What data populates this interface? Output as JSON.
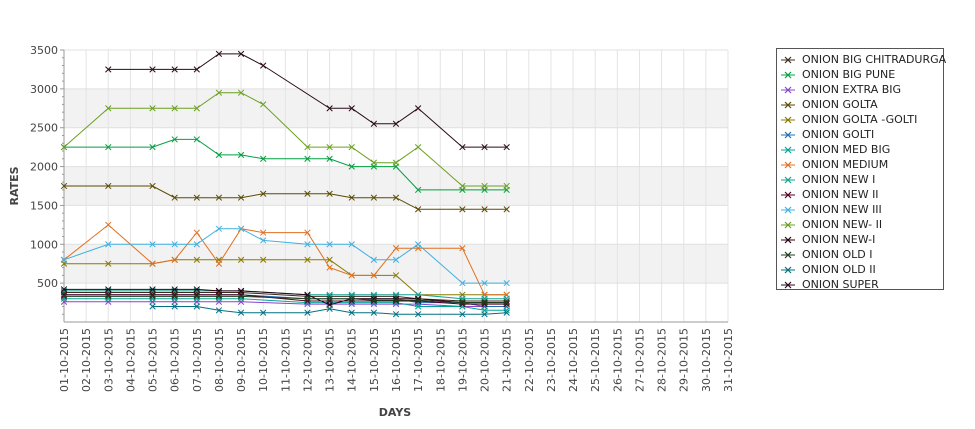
{
  "chart_data": {
    "type": "line",
    "xlabel": "DAYS",
    "ylabel": "RATES",
    "ylim": [
      0,
      3500
    ],
    "y_ticks": [
      500,
      1000,
      1500,
      2000,
      2500,
      3000,
      3500
    ],
    "grid": "on",
    "legend_position": "right",
    "x": [
      "01-10-2015",
      "02-10-2015",
      "03-10-2015",
      "04-10-2015",
      "05-10-2015",
      "06-10-2015",
      "07-10-2015",
      "08-10-2015",
      "09-10-2015",
      "10-10-2015",
      "11-10-2015",
      "12-10-2015",
      "13-10-2015",
      "14-10-2015",
      "15-10-2015",
      "16-10-2015",
      "17-10-2015",
      "18-10-2015",
      "19-10-2015",
      "20-10-2015",
      "21-10-2015",
      "22-10-2015",
      "23-10-2015",
      "24-10-2015",
      "25-10-2015",
      "26-10-2015",
      "27-10-2015",
      "28-10-2015",
      "29-10-2015",
      "30-10-2015",
      "31-10-2015"
    ],
    "series": [
      {
        "name": "ONION BIG CHITRADURGA",
        "color": "#3d2b1f",
        "values": [
          380,
          null,
          380,
          null,
          380,
          380,
          380,
          380,
          380,
          null,
          null,
          330,
          330,
          330,
          330,
          330,
          300,
          null,
          270,
          270,
          270,
          null,
          null,
          null,
          null,
          null,
          null,
          null,
          null,
          null,
          null
        ]
      },
      {
        "name": "ONION BIG PUNE",
        "color": "#00a040",
        "values": [
          2250,
          null,
          2250,
          null,
          2250,
          2350,
          2350,
          2150,
          2150,
          2100,
          null,
          2100,
          2100,
          2000,
          2000,
          2000,
          1700,
          null,
          1700,
          1700,
          1700,
          null,
          null,
          null,
          null,
          null,
          null,
          null,
          null,
          null,
          null
        ]
      },
      {
        "name": "ONION EXTRA BIG",
        "color": "#8844cc",
        "values": [
          260,
          null,
          260,
          null,
          260,
          260,
          260,
          260,
          260,
          null,
          null,
          230,
          230,
          230,
          230,
          230,
          230,
          null,
          200,
          200,
          200,
          null,
          null,
          null,
          null,
          null,
          null,
          null,
          null,
          null,
          null
        ]
      },
      {
        "name": "ONION GOLTA",
        "color": "#5a4a00",
        "values": [
          1750,
          null,
          1750,
          null,
          1750,
          1600,
          1600,
          1600,
          1600,
          1650,
          null,
          1650,
          1650,
          1600,
          1600,
          1600,
          1450,
          null,
          1450,
          1450,
          1450,
          null,
          null,
          null,
          null,
          null,
          null,
          null,
          null,
          null,
          null
        ]
      },
      {
        "name": "ONION GOLTA -GOLTI",
        "color": "#8a7a00",
        "values": [
          750,
          null,
          750,
          null,
          750,
          800,
          800,
          800,
          800,
          800,
          null,
          800,
          800,
          600,
          600,
          600,
          350,
          null,
          350,
          350,
          350,
          null,
          null,
          null,
          null,
          null,
          null,
          null,
          null,
          null,
          null
        ]
      },
      {
        "name": "ONION GOLTI",
        "color": "#1f6fb4",
        "values": [
          350,
          null,
          350,
          null,
          350,
          350,
          350,
          350,
          350,
          null,
          null,
          300,
          300,
          300,
          300,
          300,
          250,
          null,
          250,
          200,
          200,
          null,
          null,
          null,
          null,
          null,
          null,
          null,
          null,
          null,
          null
        ]
      },
      {
        "name": "ONION MED BIG",
        "color": "#00a59a",
        "values": [
          300,
          null,
          300,
          null,
          300,
          300,
          300,
          300,
          300,
          null,
          null,
          250,
          250,
          250,
          250,
          250,
          200,
          null,
          200,
          150,
          150,
          null,
          null,
          null,
          null,
          null,
          null,
          null,
          null,
          null,
          null
        ]
      },
      {
        "name": "ONION MEDIUM",
        "color": "#e07020",
        "values": [
          800,
          null,
          1250,
          null,
          750,
          800,
          1150,
          750,
          1200,
          1150,
          null,
          1150,
          700,
          600,
          600,
          950,
          950,
          null,
          950,
          350,
          350,
          null,
          null,
          null,
          null,
          null,
          null,
          null,
          null,
          null,
          null
        ]
      },
      {
        "name": "ONION NEW I",
        "color": "#10a090",
        "values": [
          400,
          null,
          400,
          null,
          400,
          400,
          400,
          400,
          400,
          null,
          null,
          350,
          350,
          350,
          350,
          350,
          350,
          null,
          300,
          300,
          300,
          null,
          null,
          null,
          null,
          null,
          null,
          null,
          null,
          null,
          null
        ]
      },
      {
        "name": "ONION NEW II",
        "color": "#550022",
        "values": [
          350,
          null,
          350,
          null,
          350,
          350,
          350,
          350,
          350,
          null,
          null,
          270,
          270,
          270,
          270,
          270,
          270,
          null,
          230,
          230,
          230,
          null,
          null,
          null,
          null,
          null,
          null,
          null,
          null,
          null,
          null
        ]
      },
      {
        "name": "ONION NEW III",
        "color": "#40b0e0",
        "values": [
          800,
          null,
          1000,
          null,
          1000,
          1000,
          1000,
          1200,
          1200,
          1050,
          null,
          1000,
          1000,
          1000,
          800,
          800,
          1000,
          null,
          500,
          500,
          500,
          null,
          null,
          null,
          null,
          null,
          null,
          null,
          null,
          null,
          null
        ]
      },
      {
        "name": "ONION NEW- II",
        "color": "#6aa020",
        "values": [
          2250,
          null,
          2750,
          null,
          2750,
          2750,
          2750,
          2950,
          2950,
          2800,
          null,
          2250,
          2250,
          2250,
          2050,
          2050,
          2250,
          null,
          1750,
          1750,
          1750,
          null,
          null,
          null,
          null,
          null,
          null,
          null,
          null,
          null,
          null
        ]
      },
      {
        "name": "ONION NEW-I",
        "color": "#2a0010",
        "values": [
          420,
          null,
          420,
          null,
          420,
          420,
          420,
          400,
          400,
          null,
          null,
          350,
          220,
          300,
          300,
          300,
          300,
          null,
          250,
          250,
          250,
          null,
          null,
          null,
          null,
          null,
          null,
          null,
          null,
          null,
          null
        ]
      },
      {
        "name": "ONION OLD I",
        "color": "#1f3f1f",
        "values": [
          330,
          null,
          330,
          null,
          330,
          330,
          330,
          330,
          330,
          null,
          null,
          300,
          300,
          300,
          280,
          280,
          280,
          null,
          250,
          250,
          250,
          null,
          null,
          null,
          null,
          null,
          null,
          null,
          null,
          null,
          null
        ]
      },
      {
        "name": "ONION OLD II",
        "color": "#007080",
        "values": [
          null,
          null,
          null,
          null,
          200,
          200,
          200,
          150,
          120,
          120,
          null,
          120,
          170,
          120,
          120,
          100,
          100,
          null,
          100,
          100,
          120,
          null,
          null,
          null,
          null,
          null,
          null,
          null,
          null,
          null,
          null
        ]
      },
      {
        "name": "ONION SUPER",
        "color": "#2a0a1a",
        "values": [
          null,
          null,
          3250,
          null,
          3250,
          3250,
          3250,
          3450,
          3450,
          3300,
          null,
          null,
          2750,
          2750,
          2550,
          2550,
          2750,
          null,
          2250,
          2250,
          2250,
          null,
          null,
          null,
          null,
          null,
          null,
          null,
          null,
          null,
          null
        ]
      }
    ]
  }
}
